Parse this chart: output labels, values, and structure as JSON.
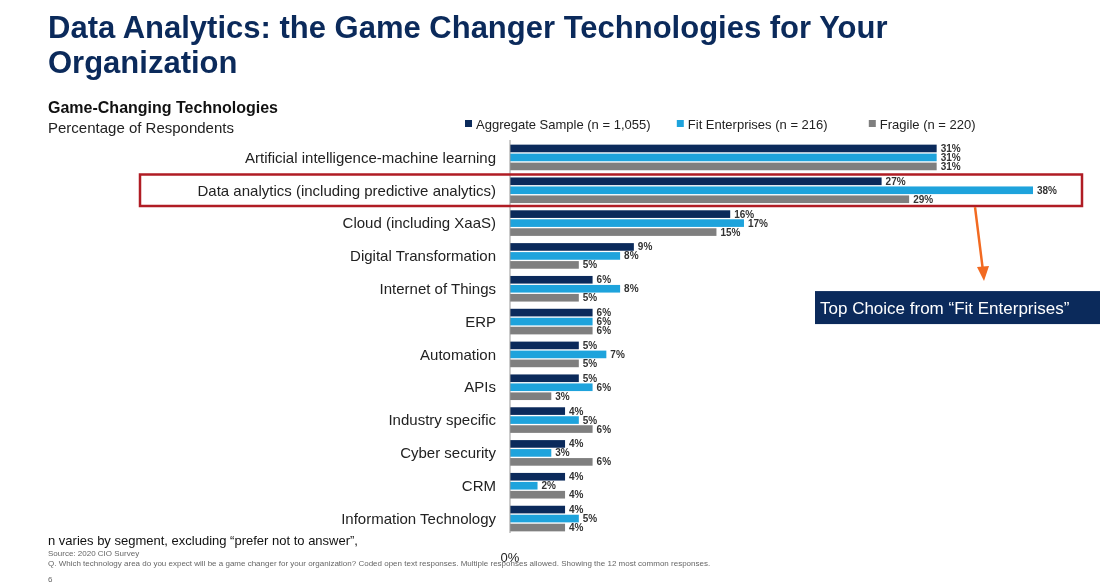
{
  "chart_data": {
    "type": "bar",
    "orientation": "horizontal",
    "title": "Data Analytics: the Game Changer Technologies for Your Organization",
    "subtitle": "Game-Changing Technologies",
    "categories": [
      "Artificial intelligence-machine learning",
      "Data analytics (including predictive analytics)",
      "Cloud (including XaaS)",
      "Digital Transformation",
      "Internet of Things",
      "ERP",
      "Automation",
      "APIs",
      "Industry specific",
      "Cyber security",
      "CRM",
      "Information Technology"
    ],
    "series": [
      {
        "name": "Aggregate Sample (n = 1,055)",
        "color": "#0b2a5b",
        "values": [
          31,
          27,
          16,
          9,
          6,
          6,
          5,
          5,
          4,
          4,
          4,
          4
        ],
        "value_labels": [
          "31%",
          "27%",
          "16%",
          "9%",
          "6%",
          "6%",
          "5%",
          "5%",
          "4%",
          "4%",
          "4%",
          "4%"
        ]
      },
      {
        "name": "Fit Enterprises (n = 216)",
        "color": "#1ea3dc",
        "values": [
          31,
          38,
          17,
          8,
          8,
          6,
          7,
          6,
          5,
          3,
          2,
          5
        ],
        "value_labels": [
          "31%",
          "38%",
          "17%",
          "8%",
          "8%",
          "6%",
          "7%",
          "6%",
          "5%",
          "3%",
          "2%",
          "5%"
        ]
      },
      {
        "name": "Fragile (n = 220)",
        "color": "#7f7f7f",
        "values": [
          31,
          29,
          15,
          5,
          5,
          6,
          5,
          3,
          6,
          6,
          4,
          4
        ],
        "value_labels": [
          "31%",
          "29%",
          "15%",
          "5%",
          "5%",
          "6%",
          "5%",
          "3%",
          "6%",
          "6%",
          "4%",
          "4%"
        ]
      }
    ],
    "legend": "top",
    "annotations": [
      "Percentage of Respondents",
      "Top Choice from “Fit Enterprises”",
      "n varies by segment, excluding “prefer not to answer”,",
      "Source: 2020 CIO Survey",
      "Q. Which technology area do you expect will be a game changer for your organization? Coded open text responses. Multiple responses allowed. Showing the 12 most common responses.",
      "6",
      "0%"
    ]
  }
}
